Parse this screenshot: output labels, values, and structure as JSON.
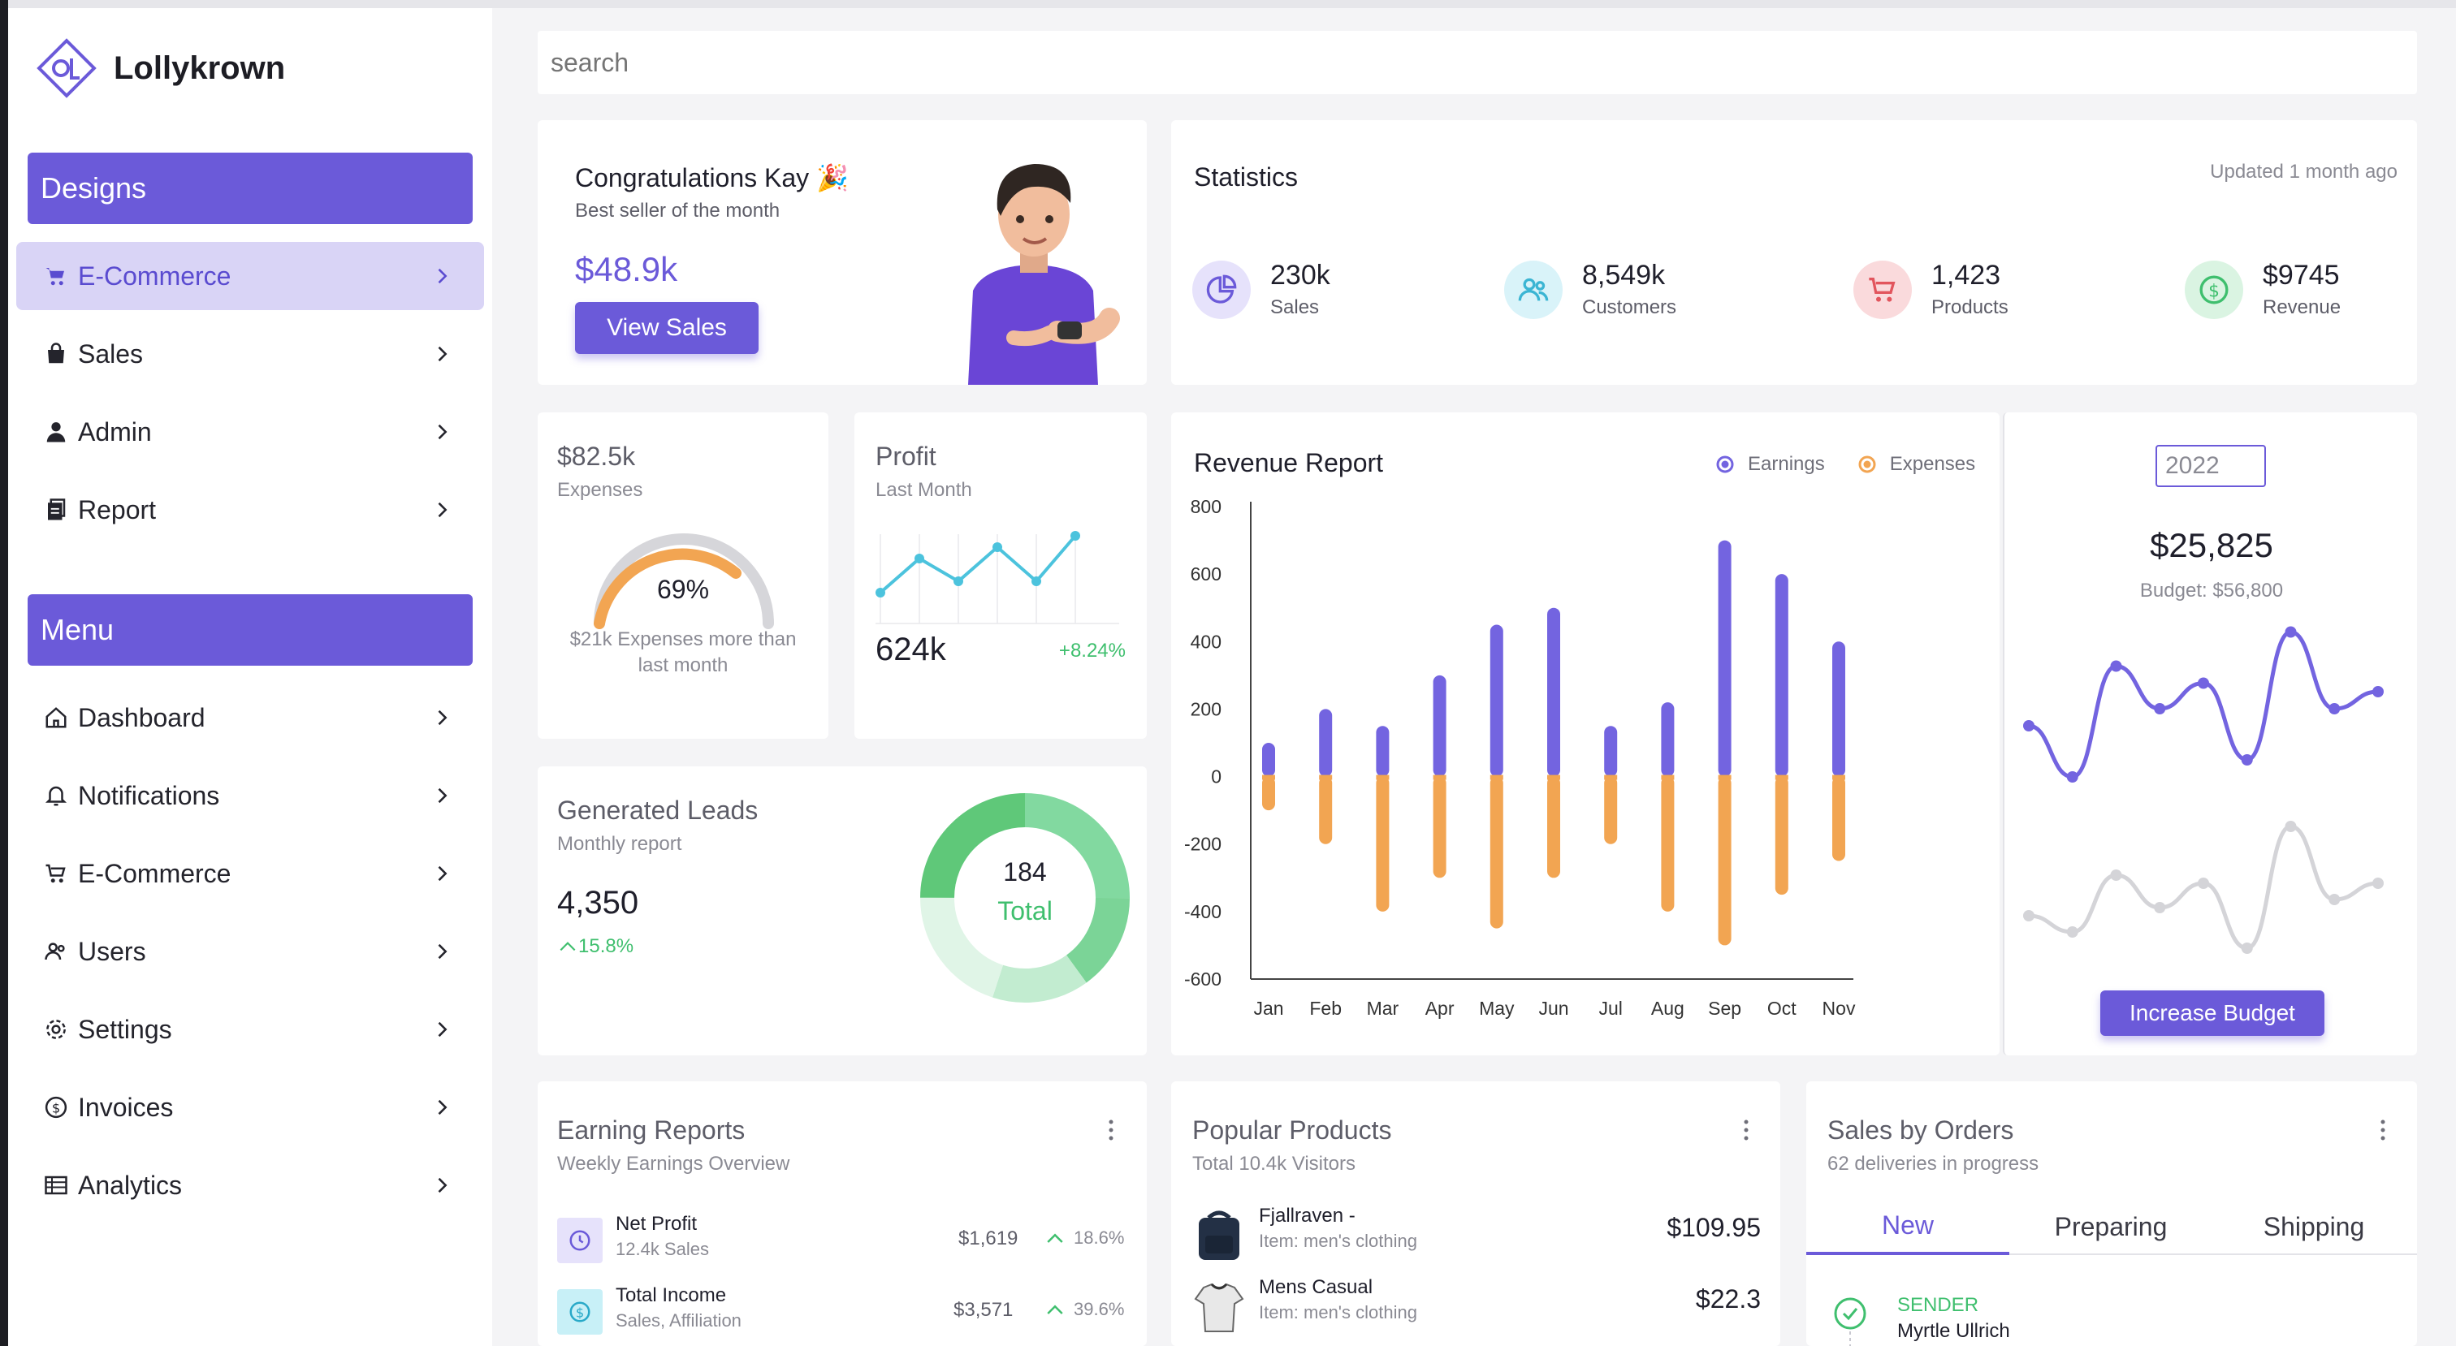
{
  "brand": {
    "name": "Lollykrown",
    "logo_text": "OL"
  },
  "sidebar": {
    "designs_label": "Designs",
    "designs_items": [
      {
        "label": "E-Commerce",
        "icon": "cart-icon",
        "active": true
      },
      {
        "label": "Sales",
        "icon": "bag-icon"
      },
      {
        "label": "Admin",
        "icon": "user-icon"
      },
      {
        "label": "Report",
        "icon": "report-icon"
      }
    ],
    "menu_label": "Menu",
    "menu_items": [
      {
        "label": "Dashboard",
        "icon": "home-icon"
      },
      {
        "label": "Notifications",
        "icon": "bell-icon"
      },
      {
        "label": "E-Commerce",
        "icon": "cart-icon"
      },
      {
        "label": "Users",
        "icon": "users-icon"
      },
      {
        "label": "Settings",
        "icon": "gear-icon"
      },
      {
        "label": "Invoices",
        "icon": "dollar-icon"
      },
      {
        "label": "Analytics",
        "icon": "table-icon"
      }
    ]
  },
  "search": {
    "placeholder": "search"
  },
  "congrats": {
    "title": "Congratulations Kay 🎉",
    "subtitle": "Best seller of the month",
    "amount": "$48.9k",
    "button": "View Sales"
  },
  "statistics": {
    "title": "Statistics",
    "updated": "Updated 1 month ago",
    "items": [
      {
        "value": "230k",
        "label": "Sales",
        "icon": "pie-chart-icon",
        "color": "#6b5ad9",
        "bg": "#e6e2fb"
      },
      {
        "value": "8,549k",
        "label": "Customers",
        "icon": "users-icon",
        "color": "#3bb5d3",
        "bg": "#d9f3f9"
      },
      {
        "value": "1,423",
        "label": "Products",
        "icon": "cart-icon",
        "color": "#e2555d",
        "bg": "#fadadc"
      },
      {
        "value": "$9745",
        "label": "Revenue",
        "icon": "dollar-icon",
        "color": "#3fbf6e",
        "bg": "#daf4e2"
      }
    ]
  },
  "expenses": {
    "amount": "$82.5k",
    "label": "Expenses",
    "percent_text": "69%",
    "percent": 69,
    "note": "$21k Expenses more than last month"
  },
  "profit": {
    "title": "Profit",
    "subtitle": "Last Month",
    "value": "624k",
    "change": "+8.24%",
    "series": [
      2,
      5,
      3,
      6,
      3,
      7
    ]
  },
  "leads": {
    "title": "Generated Leads",
    "subtitle": "Monthly report",
    "value": "4,350",
    "change": "15.8%",
    "donut_value": "184",
    "donut_label": "Total",
    "segments": [
      {
        "value": 25,
        "color": "#82d9a0"
      },
      {
        "value": 15,
        "color": "#7bd497"
      },
      {
        "value": 15,
        "color": "#c2ecd0"
      },
      {
        "value": 20,
        "color": "#e0f5e7"
      },
      {
        "value": 25,
        "color": "#5fc879"
      }
    ]
  },
  "revenue": {
    "title": "Revenue Report",
    "legend": {
      "earnings": "Earnings",
      "expenses": "Expenses"
    },
    "colors": {
      "earnings": "#7364e0",
      "expenses": "#f2a552"
    }
  },
  "budget": {
    "year": "2022",
    "amount": "$25,825",
    "label": "Budget: $56,800",
    "button": "Increase Budget",
    "series_a": [
      40,
      10,
      75,
      50,
      65,
      20,
      95,
      50,
      60
    ],
    "series_b": [
      35,
      25,
      60,
      40,
      55,
      15,
      90,
      45,
      55
    ]
  },
  "earning_reports": {
    "title": "Earning Reports",
    "subtitle": "Weekly Earnings Overview",
    "rows": [
      {
        "name": "Net Profit",
        "detail": "12.4k Sales",
        "amount": "$1,619",
        "change": "18.6%",
        "icon": "clock-icon",
        "bg": "#e6e2fb",
        "color": "#6b5ad9"
      },
      {
        "name": "Total Income",
        "detail": "Sales, Affiliation",
        "amount": "$3,571",
        "change": "39.6%",
        "icon": "dollar-icon",
        "bg": "#c8f0f7",
        "color": "#29a9c8"
      }
    ]
  },
  "popular_products": {
    "title": "Popular Products",
    "subtitle": "Total 10.4k Visitors",
    "rows": [
      {
        "name": "Fjallraven -",
        "detail": "Item: men's clothing",
        "price": "$109.95"
      },
      {
        "name": "Mens Casual",
        "detail": "Item: men's clothing",
        "price": "$22.3"
      }
    ]
  },
  "sales_orders": {
    "title": "Sales by Orders",
    "subtitle": "62 deliveries in progress",
    "tabs": [
      "New",
      "Preparing",
      "Shipping"
    ],
    "sender_label": "SENDER",
    "sender_name": "Myrtle Ullrich"
  },
  "chart_data": [
    {
      "type": "bar",
      "title": "Revenue Report",
      "categories": [
        "Jan",
        "Feb",
        "Mar",
        "Apr",
        "May",
        "Jun",
        "Jul",
        "Aug",
        "Sep",
        "Oct",
        "Nov"
      ],
      "series": [
        {
          "name": "Earnings",
          "values": [
            100,
            200,
            150,
            300,
            450,
            500,
            150,
            220,
            700,
            600,
            400
          ]
        },
        {
          "name": "Expenses",
          "values": [
            -100,
            -200,
            -400,
            -300,
            -450,
            -300,
            -200,
            -400,
            -500,
            -350,
            -250
          ]
        }
      ],
      "ylim": [
        -600,
        800
      ],
      "yticks": [
        800,
        600,
        400,
        200,
        0,
        -200,
        -400,
        -600
      ]
    }
  ]
}
